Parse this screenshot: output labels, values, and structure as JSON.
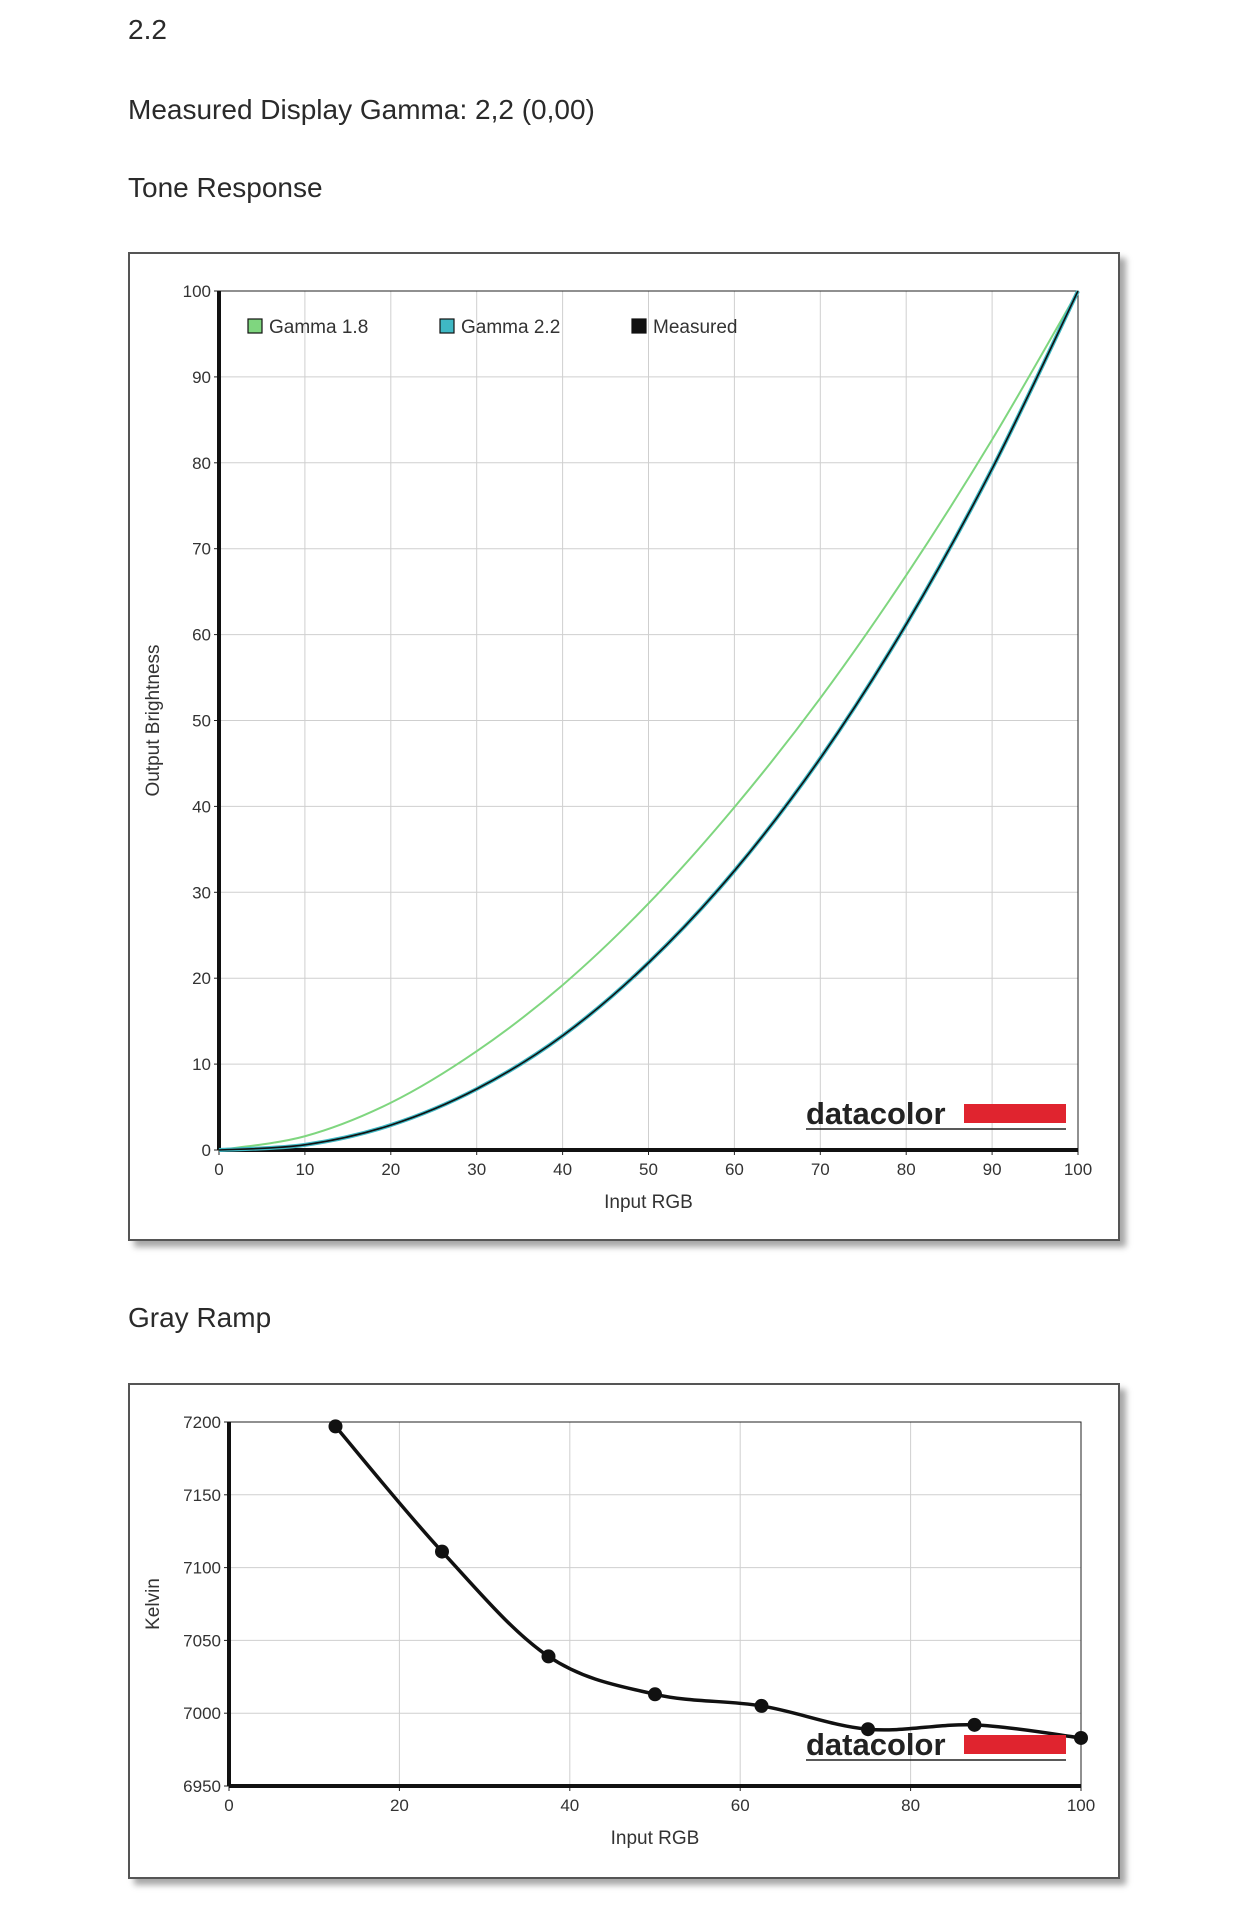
{
  "page": {
    "version_label": "2.2",
    "measured_gamma": "Measured Display Gamma: 2,2 (0,00)",
    "tone_heading": "Tone Response",
    "gray_heading": "Gray Ramp",
    "brand": "datacolor"
  },
  "colors": {
    "gamma18": "#7fd67f",
    "gamma22": "#3fb8c4",
    "measured": "#111111",
    "grid": "#cfcfcf",
    "brand_red": "#e0242f"
  },
  "chart_data": [
    {
      "type": "line",
      "xlabel": "Input RGB",
      "ylabel": "Output Brightness",
      "xlim": [
        0,
        100
      ],
      "ylim": [
        0,
        100
      ],
      "xticks": [
        "0",
        "10",
        "20",
        "30",
        "40",
        "50",
        "60",
        "70",
        "80",
        "90",
        "100"
      ],
      "yticks": [
        "0",
        "10",
        "20",
        "30",
        "40",
        "50",
        "60",
        "70",
        "80",
        "90",
        "100"
      ],
      "grid": true,
      "legend": "top-left",
      "legend_entries": [
        "Gamma 1.8",
        "Gamma 2.2",
        "Measured"
      ],
      "x": [
        0,
        10,
        20,
        30,
        40,
        50,
        60,
        70,
        80,
        90,
        100
      ],
      "series": [
        {
          "name": "Gamma 1.8",
          "values": [
            0,
            1.6,
            5.5,
            11.5,
            19.2,
            28.7,
            39.9,
            52.6,
            66.9,
            82.7,
            100
          ]
        },
        {
          "name": "Gamma 2.2",
          "values": [
            0,
            0.6,
            2.9,
            7.1,
            13.3,
            21.8,
            32.5,
            45.6,
            61.2,
            79.3,
            100
          ]
        },
        {
          "name": "Measured",
          "values": [
            0,
            0.6,
            2.9,
            7.1,
            13.3,
            21.8,
            32.5,
            45.6,
            61.2,
            79.3,
            100
          ]
        }
      ]
    },
    {
      "type": "line",
      "xlabel": "Input RGB",
      "ylabel": "Kelvin",
      "xlim": [
        0,
        100
      ],
      "ylim": [
        6950,
        7200
      ],
      "xticks": [
        "0",
        "20",
        "40",
        "60",
        "80",
        "100"
      ],
      "yticks": [
        "6950",
        "7000",
        "7050",
        "7100",
        "7150",
        "7200"
      ],
      "grid": true,
      "series": [
        {
          "x": [
            12.5,
            25,
            37.5,
            50,
            62.5,
            75,
            87.5,
            100
          ],
          "values": [
            7197,
            7111,
            7039,
            7013,
            7005,
            6989,
            6992,
            6983
          ]
        }
      ]
    }
  ]
}
